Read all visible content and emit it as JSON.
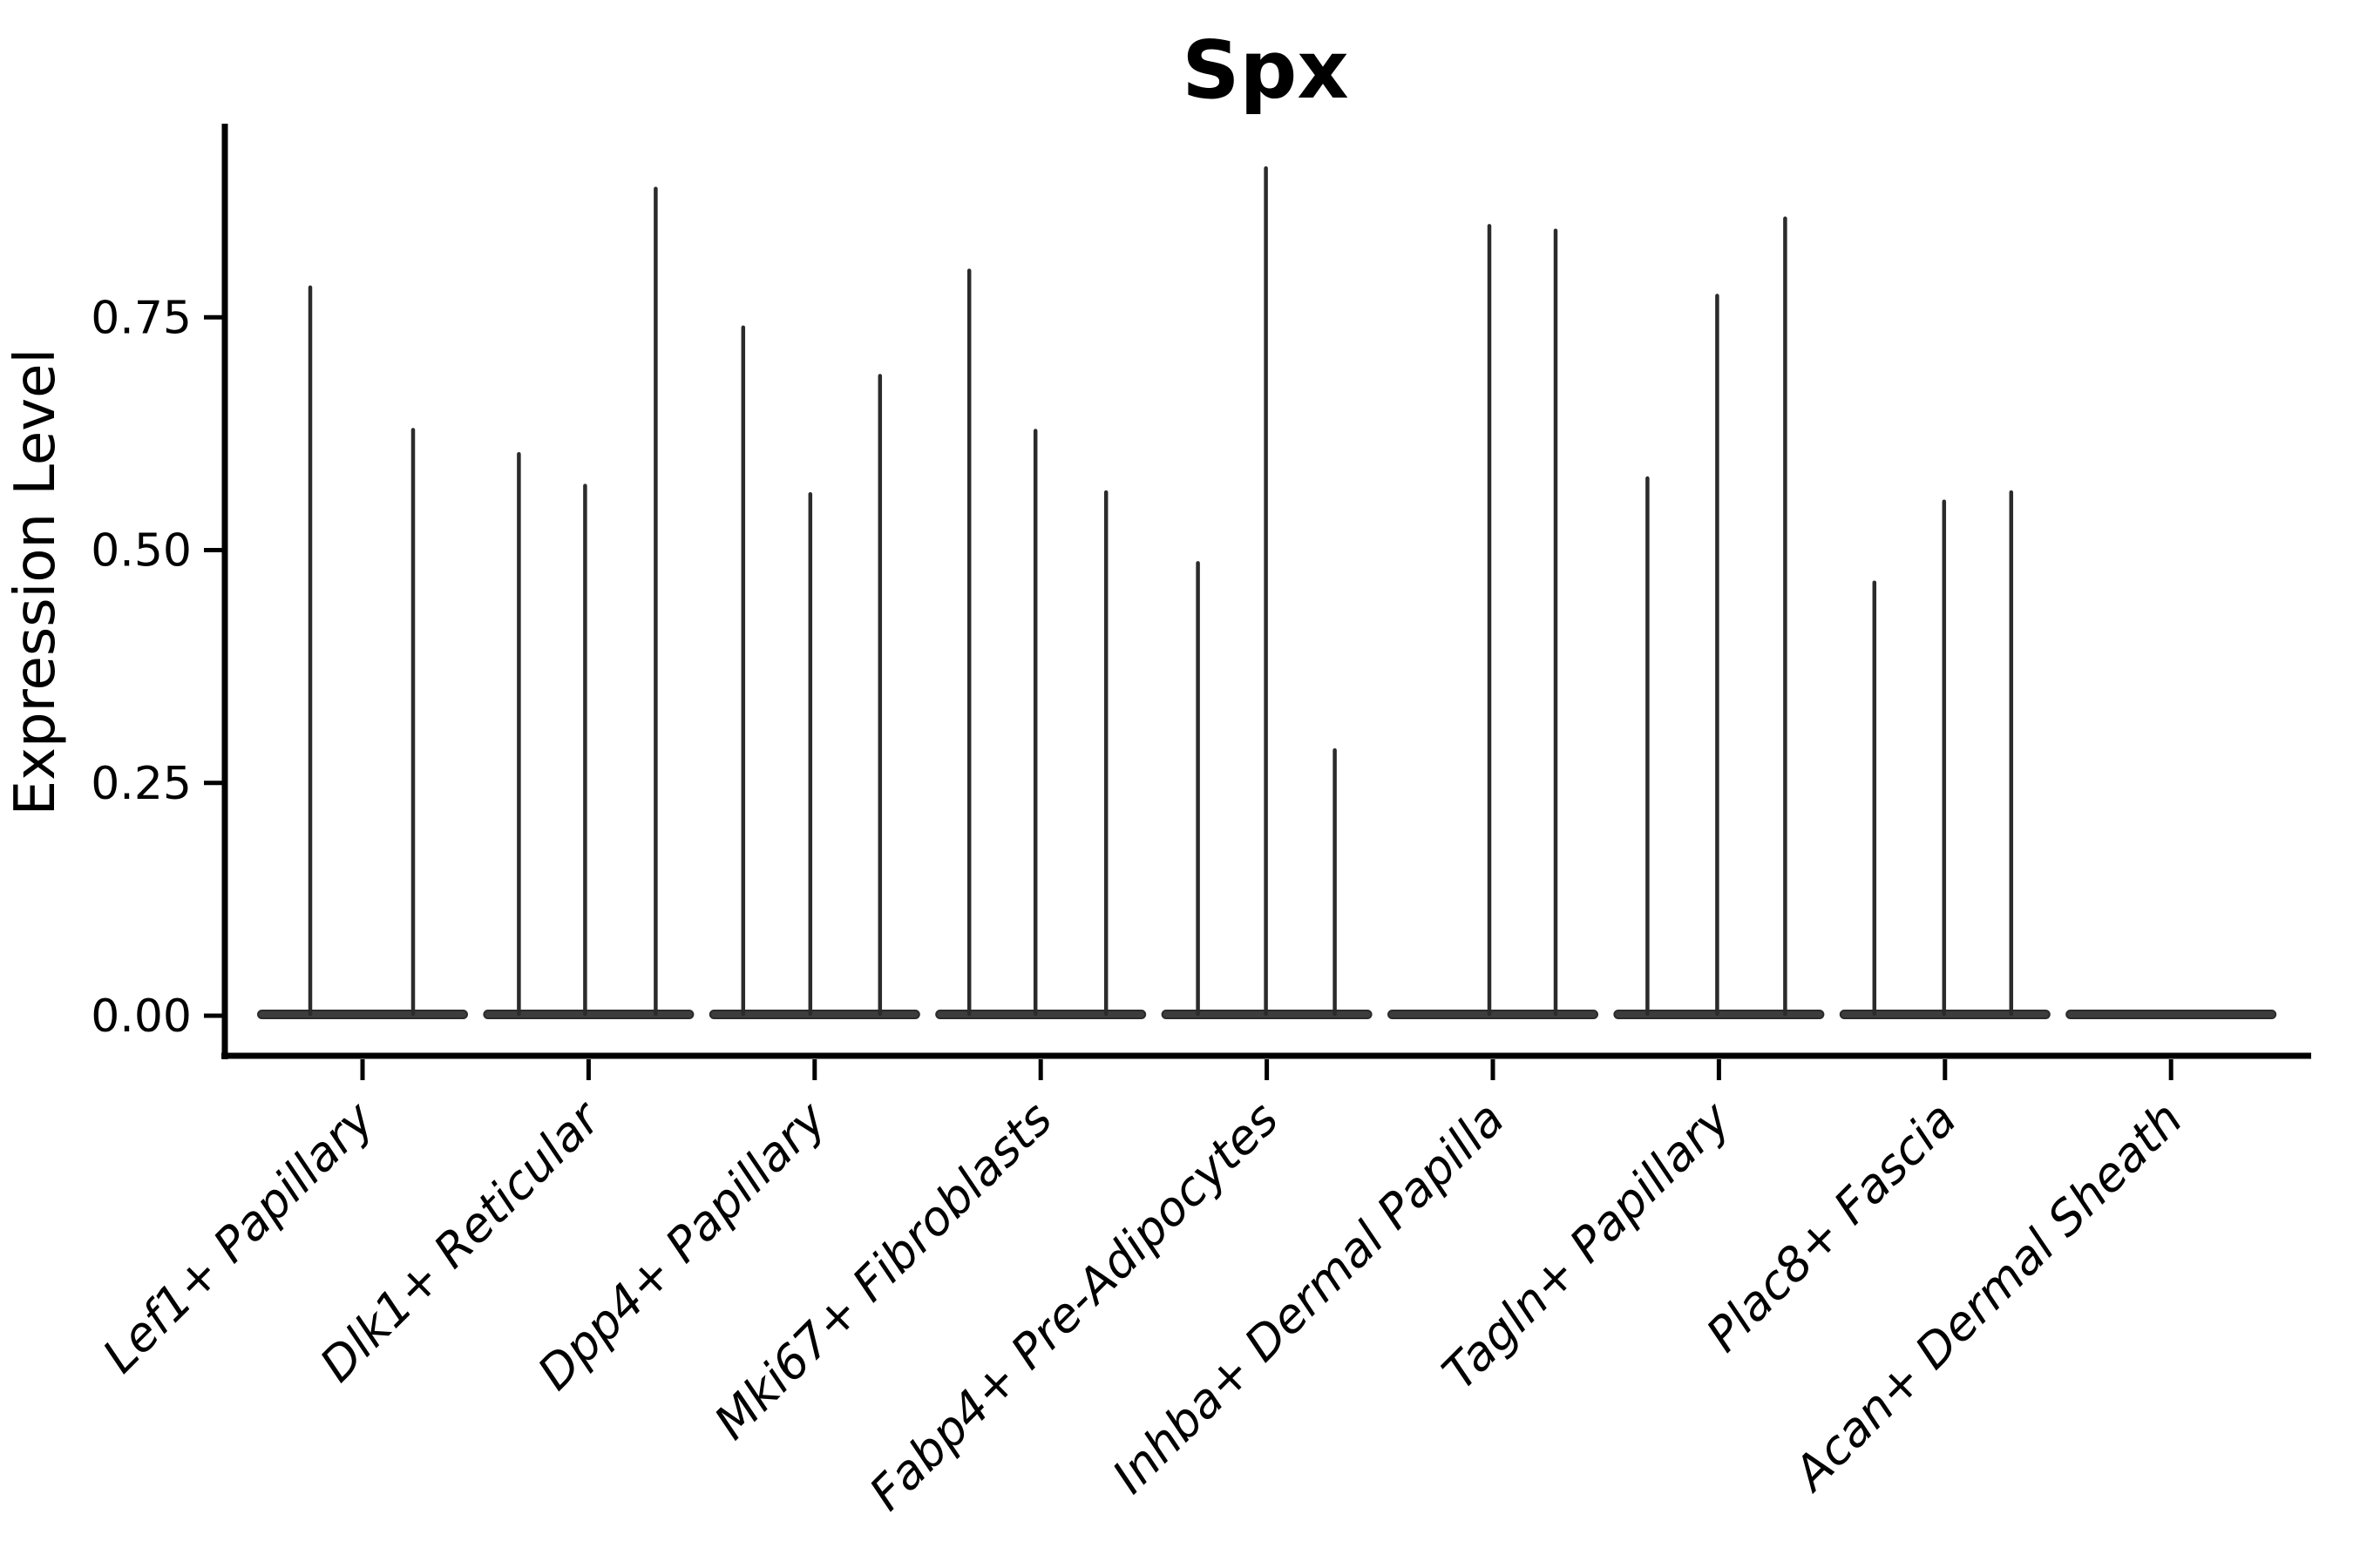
{
  "chart_data": {
    "type": "violin",
    "title": "Spx",
    "xlabel": "",
    "ylabel": "Expression Level",
    "ylim": [
      0,
      0.954
    ],
    "grid": false,
    "legend": "none",
    "ytick_values": [
      0.0,
      0.25,
      0.5,
      0.75
    ],
    "ytick_labels": [
      "0.00",
      "0.25",
      "0.50",
      "0.75"
    ],
    "note": "Seurat-style violin plot; each category is a flat near-zero violin with thin density needles at the expression values of the few positive cells",
    "categories": [
      "Lef1+ Papillary",
      "Dlk1+ Reticular",
      "Dpp4+ Papillary",
      "Mki67+ Fibroblasts",
      "Fabp4+ Pre-Adipocytes",
      "Inhba+ Dermal Papilla",
      "Tagln+ Papillary",
      "Plac8+ Fascia",
      "Acan+ Dermal Sheath"
    ],
    "series": [
      {
        "name": "Lef1+ Papillary",
        "spikes": [
          {
            "x_offset": -60,
            "value": 0.784
          },
          {
            "x_offset": 58,
            "value": 0.631
          }
        ]
      },
      {
        "name": "Dlk1+ Reticular",
        "spikes": [
          {
            "x_offset": -80,
            "value": 0.605
          },
          {
            "x_offset": -4,
            "value": 0.571
          },
          {
            "x_offset": 77,
            "value": 0.89
          }
        ]
      },
      {
        "name": "Dpp4+ Papillary",
        "spikes": [
          {
            "x_offset": -82,
            "value": 0.741
          },
          {
            "x_offset": -5,
            "value": 0.562
          },
          {
            "x_offset": 75,
            "value": 0.689
          }
        ]
      },
      {
        "name": "Mki67+ Fibroblasts",
        "spikes": [
          {
            "x_offset": -82,
            "value": 0.802
          },
          {
            "x_offset": -6,
            "value": 0.63
          },
          {
            "x_offset": 75,
            "value": 0.564
          }
        ]
      },
      {
        "name": "Fabp4+ Pre-Adipocytes",
        "spikes": [
          {
            "x_offset": -79,
            "value": 0.488
          },
          {
            "x_offset": -1,
            "value": 0.912
          },
          {
            "x_offset": 78,
            "value": 0.287
          }
        ]
      },
      {
        "name": "Inhba+ Dermal Papilla",
        "spikes": [
          {
            "x_offset": -4,
            "value": 0.85
          },
          {
            "x_offset": 72,
            "value": 0.845
          }
        ]
      },
      {
        "name": "Tagln+ Papillary",
        "spikes": [
          {
            "x_offset": -82,
            "value": 0.579
          },
          {
            "x_offset": -2,
            "value": 0.775
          },
          {
            "x_offset": 76,
            "value": 0.858
          }
        ]
      },
      {
        "name": "Plac8+ Fascia",
        "spikes": [
          {
            "x_offset": -81,
            "value": 0.467
          },
          {
            "x_offset": -1,
            "value": 0.554
          },
          {
            "x_offset": 76,
            "value": 0.564
          }
        ]
      },
      {
        "name": "Acan+ Dermal Sheath",
        "spikes": []
      }
    ],
    "colors": {
      "axis": "#000000",
      "violin_outline": "#2b2b2b",
      "violin_base": "#3d3d3d",
      "background": "#ffffff"
    }
  }
}
